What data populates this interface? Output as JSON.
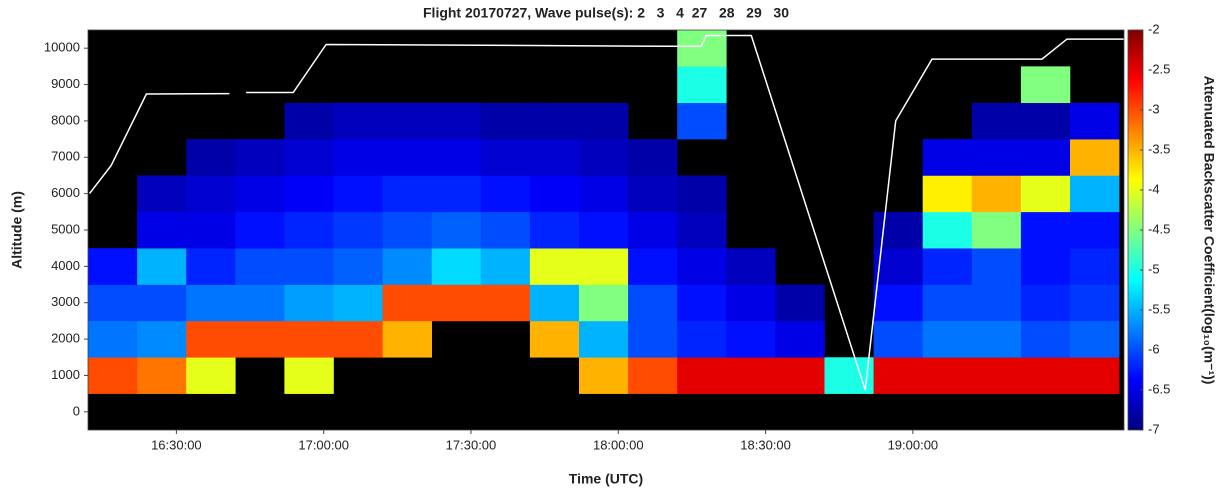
{
  "chart_data": {
    "type": "heatmap",
    "title": "Flight 20170727, Wave pulse(s): 2   3   4  27   28   29   30",
    "xlabel": "Time (UTC)",
    "ylabel": "Altitude (m)",
    "colorbar_label": "Attenuated Backscatter Coefficient(log₁₀(m⁻¹))",
    "colormap": "jet",
    "background": "#000000",
    "clim": [
      -7,
      -2
    ],
    "colorbar_ticks": [
      -2,
      -2.5,
      -3,
      -3.5,
      -4,
      -4.5,
      -5,
      -5.5,
      -6,
      -6.5,
      -7
    ],
    "xlim": [
      972,
      1183
    ],
    "xticks": [
      {
        "value": 990,
        "label": "16:30:00"
      },
      {
        "value": 1020,
        "label": "17:00:00"
      },
      {
        "value": 1050,
        "label": "17:30:00"
      },
      {
        "value": 1080,
        "label": "18:00:00"
      },
      {
        "value": 1110,
        "label": "18:30:00"
      },
      {
        "value": 1140,
        "label": "19:00:00"
      }
    ],
    "ylim": [
      -500,
      10500
    ],
    "yticks": [
      0,
      1000,
      2000,
      3000,
      4000,
      5000,
      6000,
      7000,
      8000,
      9000,
      10000
    ],
    "x_edges": [
      972,
      982,
      992,
      1002,
      1012,
      1022,
      1032,
      1042,
      1052,
      1062,
      1072,
      1082,
      1092,
      1102,
      1112,
      1122,
      1132,
      1142,
      1152,
      1162,
      1172,
      1182
    ],
    "y_edges": [
      -500,
      500,
      1500,
      2500,
      3500,
      4500,
      5500,
      6500,
      7500,
      8500,
      9500,
      10500
    ],
    "z": [
      [
        null,
        null,
        null,
        null,
        null,
        null,
        null,
        null,
        null,
        null,
        null,
        null,
        null,
        null,
        null,
        null,
        null,
        null,
        null,
        null,
        null
      ],
      [
        -3,
        -3.2,
        -4,
        null,
        -4,
        null,
        null,
        null,
        null,
        null,
        -3.5,
        -3,
        -2.5,
        -2.5,
        -2.5,
        -5,
        -2.5,
        -2.5,
        -2.5,
        -2.5,
        -2.5
      ],
      [
        -5.8,
        -5.7,
        -3,
        -3,
        -3,
        -3,
        -3.5,
        null,
        null,
        -3.5,
        -5.5,
        -6,
        -6.2,
        -6.3,
        -6.5,
        null,
        -6,
        -5.8,
        -5.8,
        -6,
        -5.9
      ],
      [
        -6,
        -6,
        -5.8,
        -5.8,
        -5.6,
        -5.5,
        -3,
        -3,
        -3,
        -5.5,
        -4.5,
        -6,
        -6.3,
        -6.5,
        -6.8,
        null,
        -6.3,
        -6,
        -6,
        -6.2,
        -6.1
      ],
      [
        -6.3,
        -5.5,
        -6.2,
        -6,
        -6,
        -5.9,
        -5.7,
        -5.3,
        -5.5,
        -4,
        -4,
        -6.3,
        -6.5,
        -6.7,
        null,
        null,
        -6.6,
        -6.2,
        -6,
        -6.3,
        -6.2
      ],
      [
        null,
        -6.5,
        -6.5,
        -6.3,
        -6.2,
        -6.1,
        -6,
        -5.9,
        -6,
        -6.2,
        -6.3,
        -6.5,
        -6.7,
        null,
        null,
        null,
        -6.8,
        -5,
        -4.5,
        -6.3,
        -6.3
      ],
      [
        null,
        -6.7,
        -6.6,
        -6.5,
        -6.4,
        -6.3,
        -6.2,
        -6.2,
        -6.3,
        -6.4,
        -6.5,
        -6.7,
        -6.8,
        null,
        null,
        null,
        null,
        -3.8,
        -3.5,
        -4,
        -5.5
      ],
      [
        null,
        null,
        -6.8,
        -6.7,
        -6.6,
        -6.5,
        -6.5,
        -6.5,
        -6.6,
        -6.6,
        -6.7,
        -6.8,
        null,
        null,
        null,
        null,
        null,
        -6.5,
        -6.5,
        -6.5,
        -3.5
      ],
      [
        null,
        null,
        null,
        null,
        -6.8,
        -6.7,
        -6.7,
        -6.7,
        -6.8,
        -6.8,
        -6.8,
        null,
        -6,
        null,
        null,
        null,
        null,
        null,
        -6.8,
        -6.8,
        -6.5
      ],
      [
        null,
        null,
        null,
        null,
        null,
        null,
        null,
        null,
        null,
        null,
        null,
        null,
        -5,
        null,
        null,
        null,
        null,
        null,
        null,
        -4.5,
        null
      ],
      [
        null,
        null,
        null,
        null,
        null,
        null,
        null,
        null,
        null,
        null,
        null,
        null,
        -4.5,
        null,
        null,
        null,
        null,
        null,
        null,
        null,
        null
      ]
    ],
    "overlay": {
      "color": "#ffffff",
      "x": [
        972.3,
        976.7,
        983.9,
        1000.8,
        1002.5,
        1004.2,
        1013.8,
        1020.5,
        1096.9,
        1097.9,
        1107.1,
        1130.3,
        1136.5,
        1143.9,
        1166.3,
        1171.4,
        1183
      ],
      "values": [
        6000,
        6770,
        8740,
        8750,
        null,
        8780,
        8780,
        10100,
        10050,
        10350,
        10350,
        600,
        8000,
        9700,
        9700,
        10250,
        10250
      ]
    }
  }
}
